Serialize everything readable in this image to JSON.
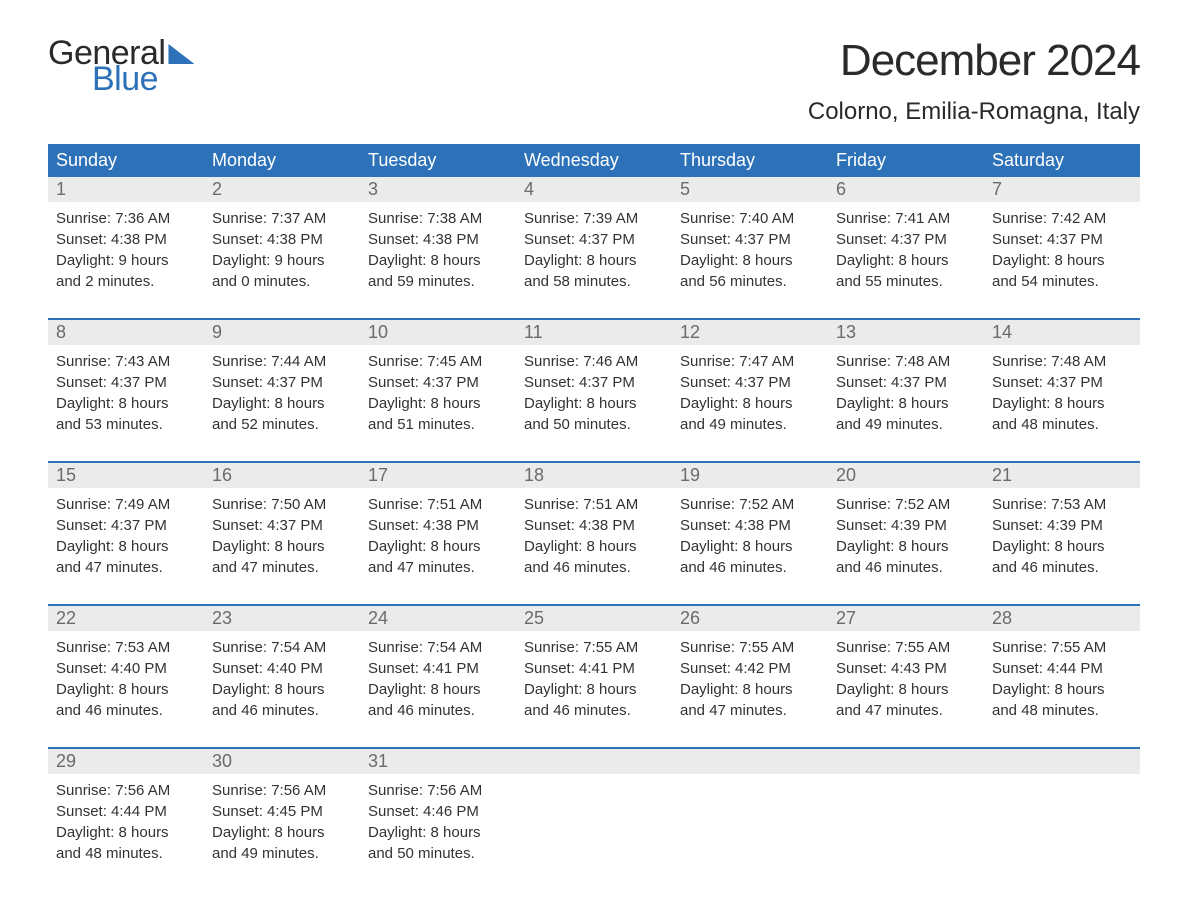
{
  "logo": {
    "text1": "General",
    "text2": "Blue"
  },
  "title": "December 2024",
  "location": "Colorno, Emilia-Romagna, Italy",
  "header_bg": "#2d72b8",
  "daynum_bg": "#ebebeb",
  "weekdays": [
    "Sunday",
    "Monday",
    "Tuesday",
    "Wednesday",
    "Thursday",
    "Friday",
    "Saturday"
  ],
  "weeks": [
    [
      {
        "n": "1",
        "sr": "Sunrise: 7:36 AM",
        "ss": "Sunset: 4:38 PM",
        "d1": "Daylight: 9 hours",
        "d2": "and 2 minutes."
      },
      {
        "n": "2",
        "sr": "Sunrise: 7:37 AM",
        "ss": "Sunset: 4:38 PM",
        "d1": "Daylight: 9 hours",
        "d2": "and 0 minutes."
      },
      {
        "n": "3",
        "sr": "Sunrise: 7:38 AM",
        "ss": "Sunset: 4:38 PM",
        "d1": "Daylight: 8 hours",
        "d2": "and 59 minutes."
      },
      {
        "n": "4",
        "sr": "Sunrise: 7:39 AM",
        "ss": "Sunset: 4:37 PM",
        "d1": "Daylight: 8 hours",
        "d2": "and 58 minutes."
      },
      {
        "n": "5",
        "sr": "Sunrise: 7:40 AM",
        "ss": "Sunset: 4:37 PM",
        "d1": "Daylight: 8 hours",
        "d2": "and 56 minutes."
      },
      {
        "n": "6",
        "sr": "Sunrise: 7:41 AM",
        "ss": "Sunset: 4:37 PM",
        "d1": "Daylight: 8 hours",
        "d2": "and 55 minutes."
      },
      {
        "n": "7",
        "sr": "Sunrise: 7:42 AM",
        "ss": "Sunset: 4:37 PM",
        "d1": "Daylight: 8 hours",
        "d2": "and 54 minutes."
      }
    ],
    [
      {
        "n": "8",
        "sr": "Sunrise: 7:43 AM",
        "ss": "Sunset: 4:37 PM",
        "d1": "Daylight: 8 hours",
        "d2": "and 53 minutes."
      },
      {
        "n": "9",
        "sr": "Sunrise: 7:44 AM",
        "ss": "Sunset: 4:37 PM",
        "d1": "Daylight: 8 hours",
        "d2": "and 52 minutes."
      },
      {
        "n": "10",
        "sr": "Sunrise: 7:45 AM",
        "ss": "Sunset: 4:37 PM",
        "d1": "Daylight: 8 hours",
        "d2": "and 51 minutes."
      },
      {
        "n": "11",
        "sr": "Sunrise: 7:46 AM",
        "ss": "Sunset: 4:37 PM",
        "d1": "Daylight: 8 hours",
        "d2": "and 50 minutes."
      },
      {
        "n": "12",
        "sr": "Sunrise: 7:47 AM",
        "ss": "Sunset: 4:37 PM",
        "d1": "Daylight: 8 hours",
        "d2": "and 49 minutes."
      },
      {
        "n": "13",
        "sr": "Sunrise: 7:48 AM",
        "ss": "Sunset: 4:37 PM",
        "d1": "Daylight: 8 hours",
        "d2": "and 49 minutes."
      },
      {
        "n": "14",
        "sr": "Sunrise: 7:48 AM",
        "ss": "Sunset: 4:37 PM",
        "d1": "Daylight: 8 hours",
        "d2": "and 48 minutes."
      }
    ],
    [
      {
        "n": "15",
        "sr": "Sunrise: 7:49 AM",
        "ss": "Sunset: 4:37 PM",
        "d1": "Daylight: 8 hours",
        "d2": "and 47 minutes."
      },
      {
        "n": "16",
        "sr": "Sunrise: 7:50 AM",
        "ss": "Sunset: 4:37 PM",
        "d1": "Daylight: 8 hours",
        "d2": "and 47 minutes."
      },
      {
        "n": "17",
        "sr": "Sunrise: 7:51 AM",
        "ss": "Sunset: 4:38 PM",
        "d1": "Daylight: 8 hours",
        "d2": "and 47 minutes."
      },
      {
        "n": "18",
        "sr": "Sunrise: 7:51 AM",
        "ss": "Sunset: 4:38 PM",
        "d1": "Daylight: 8 hours",
        "d2": "and 46 minutes."
      },
      {
        "n": "19",
        "sr": "Sunrise: 7:52 AM",
        "ss": "Sunset: 4:38 PM",
        "d1": "Daylight: 8 hours",
        "d2": "and 46 minutes."
      },
      {
        "n": "20",
        "sr": "Sunrise: 7:52 AM",
        "ss": "Sunset: 4:39 PM",
        "d1": "Daylight: 8 hours",
        "d2": "and 46 minutes."
      },
      {
        "n": "21",
        "sr": "Sunrise: 7:53 AM",
        "ss": "Sunset: 4:39 PM",
        "d1": "Daylight: 8 hours",
        "d2": "and 46 minutes."
      }
    ],
    [
      {
        "n": "22",
        "sr": "Sunrise: 7:53 AM",
        "ss": "Sunset: 4:40 PM",
        "d1": "Daylight: 8 hours",
        "d2": "and 46 minutes."
      },
      {
        "n": "23",
        "sr": "Sunrise: 7:54 AM",
        "ss": "Sunset: 4:40 PM",
        "d1": "Daylight: 8 hours",
        "d2": "and 46 minutes."
      },
      {
        "n": "24",
        "sr": "Sunrise: 7:54 AM",
        "ss": "Sunset: 4:41 PM",
        "d1": "Daylight: 8 hours",
        "d2": "and 46 minutes."
      },
      {
        "n": "25",
        "sr": "Sunrise: 7:55 AM",
        "ss": "Sunset: 4:41 PM",
        "d1": "Daylight: 8 hours",
        "d2": "and 46 minutes."
      },
      {
        "n": "26",
        "sr": "Sunrise: 7:55 AM",
        "ss": "Sunset: 4:42 PM",
        "d1": "Daylight: 8 hours",
        "d2": "and 47 minutes."
      },
      {
        "n": "27",
        "sr": "Sunrise: 7:55 AM",
        "ss": "Sunset: 4:43 PM",
        "d1": "Daylight: 8 hours",
        "d2": "and 47 minutes."
      },
      {
        "n": "28",
        "sr": "Sunrise: 7:55 AM",
        "ss": "Sunset: 4:44 PM",
        "d1": "Daylight: 8 hours",
        "d2": "and 48 minutes."
      }
    ],
    [
      {
        "n": "29",
        "sr": "Sunrise: 7:56 AM",
        "ss": "Sunset: 4:44 PM",
        "d1": "Daylight: 8 hours",
        "d2": "and 48 minutes."
      },
      {
        "n": "30",
        "sr": "Sunrise: 7:56 AM",
        "ss": "Sunset: 4:45 PM",
        "d1": "Daylight: 8 hours",
        "d2": "and 49 minutes."
      },
      {
        "n": "31",
        "sr": "Sunrise: 7:56 AM",
        "ss": "Sunset: 4:46 PM",
        "d1": "Daylight: 8 hours",
        "d2": "and 50 minutes."
      },
      null,
      null,
      null,
      null
    ]
  ]
}
